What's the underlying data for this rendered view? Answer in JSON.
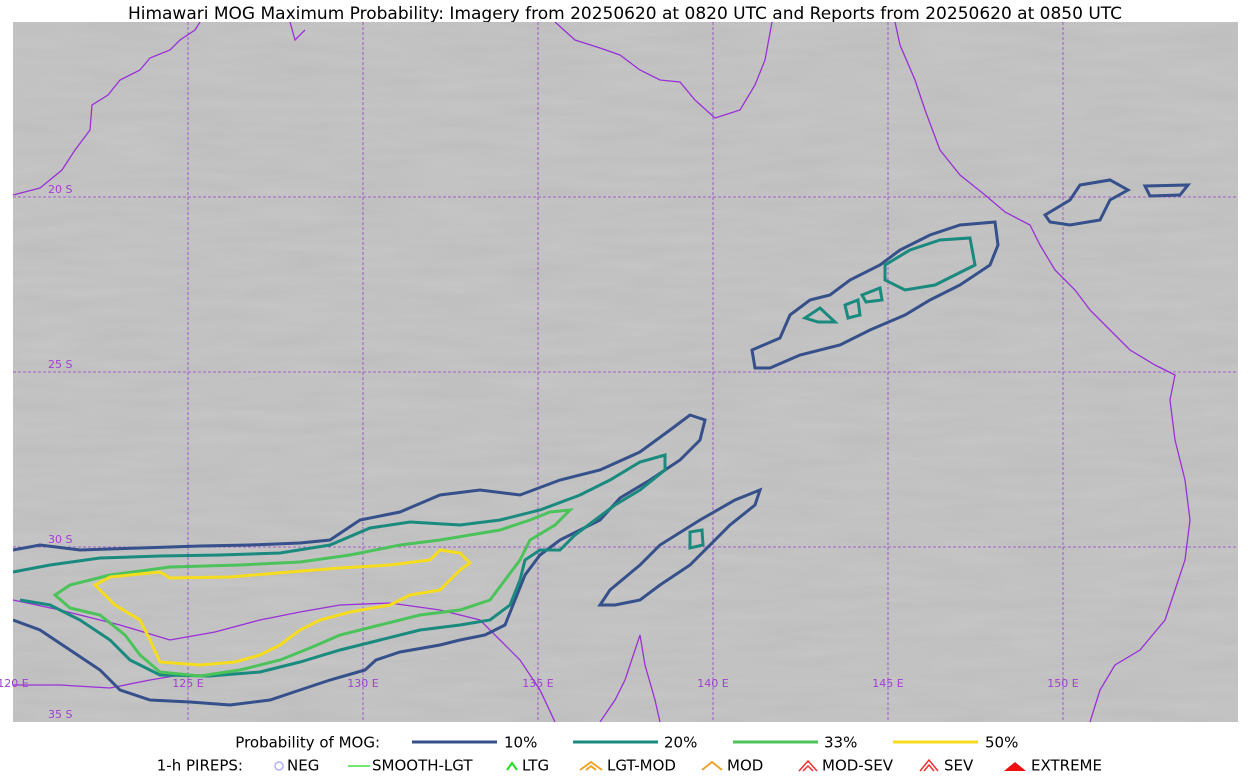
{
  "title": "Himawari MOG Maximum Probability: Imagery from 20250620 at 0820 UTC and Reports from 20250620 at 0850 UTC",
  "map": {
    "latitude_labels": [
      "20 S",
      "25 S",
      "30 S",
      "35 S"
    ],
    "longitude_labels": [
      "120 E",
      "125 E",
      "130 E",
      "135 E",
      "140 E",
      "145 E",
      "150 E"
    ]
  },
  "legend": {
    "probability": {
      "label": "Probability of MOG:",
      "items": [
        "10%",
        "20%",
        "33%",
        "50%"
      ]
    },
    "pireps": {
      "label": "1-h PIREPS:",
      "items": [
        "NEG",
        "SMOOTH-LGT",
        "LTG",
        "LGT-MOD",
        "MOD",
        "MOD-SEV",
        "SEV",
        "EXTREME"
      ]
    }
  }
}
